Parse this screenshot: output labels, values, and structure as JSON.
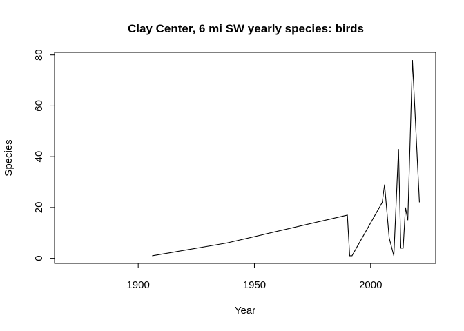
{
  "chart_data": {
    "type": "line",
    "title": "Clay Center, 6 mi SW yearly species: birds",
    "xlabel": "Year",
    "ylabel": "Species",
    "xlim": [
      1864,
      2028
    ],
    "ylim": [
      -2,
      81
    ],
    "xticks": [
      1900,
      1950,
      2000
    ],
    "yticks": [
      0,
      20,
      40,
      60,
      80
    ],
    "grid": false,
    "legend": "none",
    "series": [
      {
        "x": [
          1906,
          1938,
          1990,
          1991,
          1992,
          2005,
          2006,
          2008,
          2010,
          2012,
          2013,
          2014,
          2015,
          2016,
          2018,
          2021
        ],
        "values": [
          1,
          6,
          17,
          1,
          1,
          22,
          29,
          8,
          1,
          43,
          4,
          4,
          20,
          15,
          78,
          22
        ]
      }
    ],
    "colors": {
      "line": "#000000"
    }
  }
}
